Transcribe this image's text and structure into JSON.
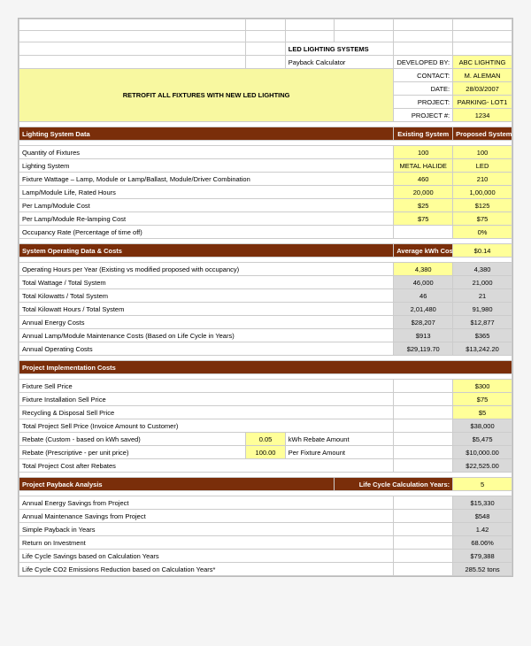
{
  "header": {
    "title": "LED LIGHTING SYSTEMS",
    "subtitle": "Payback Calculator",
    "developed_by_lbl": "DEVELOPED BY:",
    "developed_by": "ABC LIGHTING",
    "contact_lbl": "CONTACT:",
    "contact": "M. ALEMAN",
    "date_lbl": "DATE:",
    "date": "28/03/2007",
    "project_lbl": "PROJECT:",
    "project": "PARKING- LOT1",
    "projectnum_lbl": "PROJECT #:",
    "projectnum": "1234",
    "retrofit": "RETROFIT ALL FIXTURES WITH NEW LED LIGHTING"
  },
  "sec1": {
    "title": "Lighting System Data",
    "col_existing": "Existing System",
    "col_proposed": "Proposed System",
    "r1": {
      "l": "Quantity of Fixtures",
      "e": "100",
      "p": "100"
    },
    "r2": {
      "l": "Lighting System",
      "e": "METAL HALIDE",
      "p": "LED"
    },
    "r3": {
      "l": "Fixture Wattage – Lamp, Module or Lamp/Ballast, Module/Driver Combination",
      "e": "460",
      "p": "210"
    },
    "r4": {
      "l": "Lamp/Module Life, Rated Hours",
      "e": "20,000",
      "p": "1,00,000"
    },
    "r5": {
      "l": "Per Lamp/Module Cost",
      "e": "$25",
      "p": "$125"
    },
    "r6": {
      "l": "Per Lamp/Module Re-lamping Cost",
      "e": "$75",
      "p": "$75"
    },
    "r7": {
      "l": "Occupancy Rate (Percentage of time off)",
      "e": "",
      "p": "0%"
    }
  },
  "sec2": {
    "title": "System Operating Data & Costs",
    "avg_lbl": "Average kWh Cost---->",
    "avg_val": "$0.14",
    "r1": {
      "l": "Operating Hours per Year (Existing vs modified proposed with occupancy)",
      "e": "4,380",
      "p": "4,380"
    },
    "r2": {
      "l": "Total Wattage / Total System",
      "e": "46,000",
      "p": "21,000"
    },
    "r3": {
      "l": "Total Kilowatts / Total System",
      "e": "46",
      "p": "21"
    },
    "r4": {
      "l": "Total Kilowatt Hours / Total System",
      "e": "2,01,480",
      "p": "91,980"
    },
    "r5": {
      "l": "Annual Energy Costs",
      "e": "$28,207",
      "p": "$12,877"
    },
    "r6": {
      "l": "Annual Lamp/Module Maintenance Costs (Based on Life Cycle in Years)",
      "e": "$913",
      "p": "$365"
    },
    "r7": {
      "l": "Annual Operating Costs",
      "e": "$29,119.70",
      "p": "$13,242.20"
    }
  },
  "sec3": {
    "title": "Project Implementation Costs",
    "r1": {
      "l": "Fixture Sell Price",
      "p": "$300"
    },
    "r2": {
      "l": "Fixture Installation Sell Price",
      "p": "$75"
    },
    "r3": {
      "l": "Recycling & Disposal Sell Price",
      "p": "$5"
    },
    "r4": {
      "l": "Total Project Sell Price (Invoice Amount to Customer)",
      "p": "$38,000"
    },
    "r5": {
      "l": "Rebate (Custom - based on kWh saved)",
      "v": "0.05",
      "u": "kWh Rebate Amount",
      "p": "$5,475"
    },
    "r6": {
      "l": "Rebate (Prescriptive - per unit price)",
      "v": "100.00",
      "u": "Per Fixture Amount",
      "p": "$10,000.00"
    },
    "r7": {
      "l": "Total Project Cost after Rebates",
      "p": "$22,525.00"
    }
  },
  "sec4": {
    "title": "Project Payback Analysis",
    "lc_lbl": "Life Cycle Calculation Years:",
    "lc_val": "5",
    "r1": {
      "l": "Annual Energy Savings from Project",
      "p": "$15,330"
    },
    "r2": {
      "l": "Annual Maintenance Savings from Project",
      "p": "$548"
    },
    "r3": {
      "l": "Simple Payback in Years",
      "p": "1.42"
    },
    "r4": {
      "l": "Return on Investment",
      "p": "68.06%"
    },
    "r5": {
      "l": "Life Cycle Savings based on Calculation Years",
      "p": "$79,388"
    },
    "r6": {
      "l": "Life Cycle CO2 Emissions Reduction based on Calculation Years*",
      "p": "285.52 tons"
    }
  }
}
